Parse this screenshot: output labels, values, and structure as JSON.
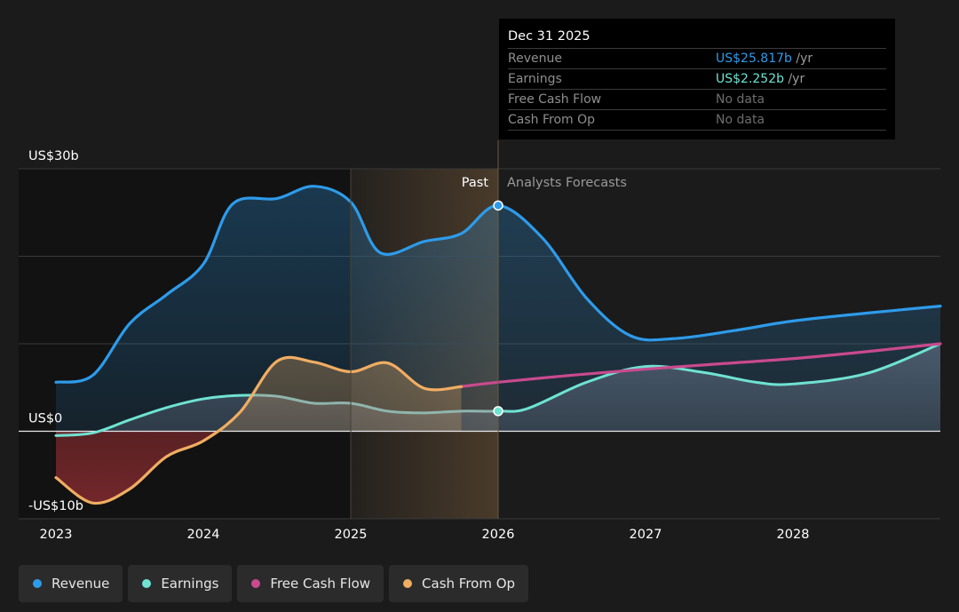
{
  "colors": {
    "background": "#1b1b1b",
    "revenue": "#2e9bea",
    "earnings": "#6fe3d2",
    "free_cash_flow": "#c94a8e",
    "cash_from_op": "#f0ad62",
    "past_highlight": "#f0ad62"
  },
  "tooltip": {
    "date": "Dec 31 2025",
    "rows": [
      {
        "label": "Revenue",
        "value": "US$25.817b",
        "unit": " /yr",
        "color": "#2e9bea"
      },
      {
        "label": "Earnings",
        "value": "US$2.252b",
        "unit": " /yr",
        "color": "#6fe3d2"
      },
      {
        "label": "Free Cash Flow",
        "value": "No data",
        "unit": "",
        "color": "#6d6d6d"
      },
      {
        "label": "Cash From Op",
        "value": "No data",
        "unit": "",
        "color": "#6d6d6d"
      }
    ]
  },
  "legend": [
    {
      "label": "Revenue",
      "color": "#2e9bea"
    },
    {
      "label": "Earnings",
      "color": "#6fe3d2"
    },
    {
      "label": "Free Cash Flow",
      "color": "#c94a8e"
    },
    {
      "label": "Cash From Op",
      "color": "#f0ad62"
    }
  ],
  "chart_data": {
    "type": "line",
    "title": "",
    "xlabel": "",
    "ylabel": "",
    "y_unit": "US$ billions",
    "xlim": [
      2023.0,
      2029.0
    ],
    "ylim": [
      -10,
      30
    ],
    "y_tick_labels": [
      {
        "value": 30,
        "label": "US$30b"
      },
      {
        "value": 0,
        "label": "US$0"
      },
      {
        "value": -10,
        "label": "-US$10b"
      }
    ],
    "y_gridlines": [
      30,
      20,
      10,
      -10
    ],
    "zero_line": 0,
    "x_ticks": [
      2023,
      2024,
      2025,
      2026,
      2027,
      2028
    ],
    "x_tick_labels": [
      "2023",
      "2024",
      "2025",
      "2026",
      "2027",
      "2028"
    ],
    "divider_x": 2026.0,
    "highlight_range": [
      2025.0,
      2026.0
    ],
    "past_label": "Past",
    "forecast_label": "Analysts Forecasts",
    "marker_x": 2026.0,
    "series": [
      {
        "name": "Revenue",
        "color": "#2e9bea",
        "fill": true,
        "x": [
          2023.0,
          2023.25,
          2023.5,
          2023.75,
          2024.0,
          2024.2,
          2024.5,
          2024.75,
          2025.0,
          2025.2,
          2025.5,
          2025.75,
          2026.0,
          2026.3,
          2026.6,
          2026.9,
          2027.2,
          2027.6,
          2028.0,
          2028.5,
          2029.0
        ],
        "y": [
          5.6,
          6.4,
          12.3,
          15.6,
          19.1,
          26.0,
          26.6,
          28.0,
          26.2,
          20.4,
          21.7,
          22.6,
          25.8,
          22.1,
          15.2,
          10.9,
          10.6,
          11.5,
          12.6,
          13.5,
          14.3
        ]
      },
      {
        "name": "Earnings",
        "color": "#6fe3d2",
        "fill": true,
        "x": [
          2023.0,
          2023.25,
          2023.5,
          2023.75,
          2024.0,
          2024.25,
          2024.5,
          2024.75,
          2025.0,
          2025.25,
          2025.5,
          2025.75,
          2026.0,
          2026.2,
          2026.6,
          2027.0,
          2027.4,
          2027.75,
          2028.0,
          2028.5,
          2029.0
        ],
        "y": [
          -0.5,
          -0.2,
          1.3,
          2.7,
          3.7,
          4.1,
          4.0,
          3.2,
          3.2,
          2.3,
          2.1,
          2.3,
          2.3,
          2.6,
          5.6,
          7.4,
          6.7,
          5.6,
          5.4,
          6.6,
          10.0
        ]
      },
      {
        "name": "Free Cash Flow",
        "color": "#c94a8e",
        "fill": false,
        "x": [
          2025.75,
          2026.0,
          2026.5,
          2027.0,
          2027.5,
          2028.0,
          2028.5,
          2029.0
        ],
        "y": [
          5.1,
          5.6,
          6.4,
          7.1,
          7.7,
          8.3,
          9.1,
          10.0
        ]
      },
      {
        "name": "Cash From Op",
        "color": "#f0ad62",
        "fill": true,
        "x": [
          2023.0,
          2023.25,
          2023.5,
          2023.75,
          2024.0,
          2024.25,
          2024.5,
          2024.75,
          2025.0,
          2025.25,
          2025.5,
          2025.75
        ],
        "y": [
          -5.3,
          -8.2,
          -6.6,
          -2.9,
          -1.1,
          2.2,
          8.0,
          7.9,
          6.8,
          7.8,
          4.9,
          5.1
        ]
      }
    ],
    "markers": [
      {
        "series": "Revenue",
        "x": 2026.0,
        "y": 25.8
      },
      {
        "series": "Earnings",
        "x": 2026.0,
        "y": 2.3
      }
    ]
  }
}
